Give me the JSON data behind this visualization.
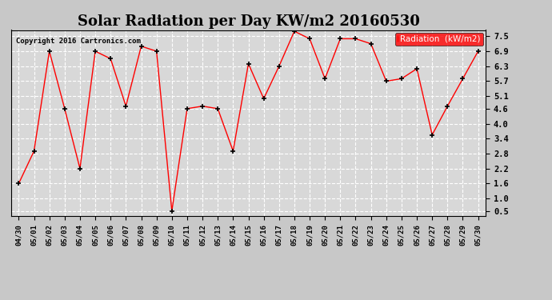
{
  "title": "Solar Radiation per Day KW/m2 20160530",
  "copyright_text": "Copyright 2016 Cartronics.com",
  "legend_label": "Radiation  (kW/m2)",
  "dates": [
    "04/30",
    "05/01",
    "05/02",
    "05/03",
    "05/04",
    "05/05",
    "05/06",
    "05/07",
    "05/08",
    "05/09",
    "05/10",
    "05/11",
    "05/12",
    "05/13",
    "05/14",
    "05/15",
    "05/16",
    "05/17",
    "05/18",
    "05/19",
    "05/20",
    "05/21",
    "05/22",
    "05/23",
    "05/24",
    "05/25",
    "05/26",
    "05/27",
    "05/28",
    "05/29",
    "05/30"
  ],
  "values": [
    1.6,
    2.9,
    6.9,
    4.6,
    2.2,
    6.9,
    6.6,
    4.7,
    7.1,
    6.9,
    0.5,
    4.6,
    4.7,
    4.6,
    2.9,
    6.4,
    5.0,
    6.3,
    7.7,
    7.4,
    5.8,
    7.4,
    7.4,
    7.2,
    5.7,
    5.8,
    6.2,
    3.55,
    4.7,
    5.8,
    6.9
  ],
  "line_color": "red",
  "marker_color": "black",
  "bg_color": "#c8c8c8",
  "plot_bg_color": "#d8d8d8",
  "grid_color": "white",
  "yticks": [
    0.5,
    1.0,
    1.6,
    2.2,
    2.8,
    3.4,
    4.0,
    4.6,
    5.1,
    5.7,
    6.3,
    6.9,
    7.5
  ],
  "ylim": [
    0.3,
    7.75
  ],
  "title_fontsize": 13,
  "legend_bg": "red",
  "legend_text_color": "white",
  "figwidth": 6.9,
  "figheight": 3.75,
  "dpi": 100
}
